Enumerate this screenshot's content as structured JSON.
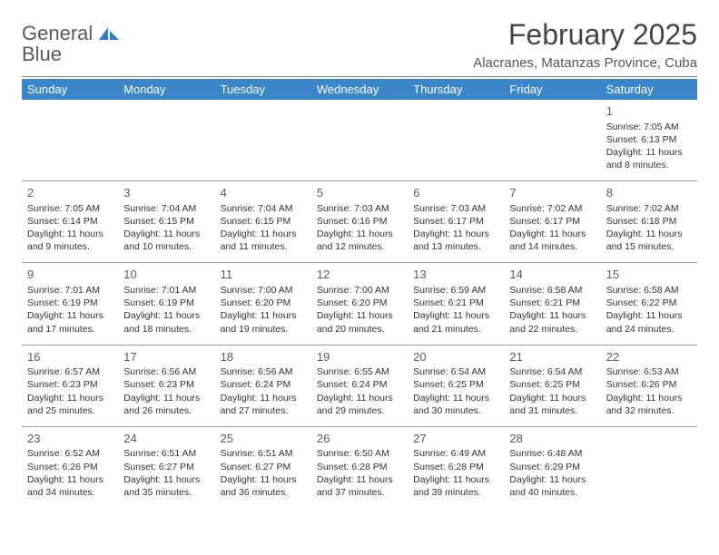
{
  "logo": {
    "text_gray": "General",
    "text_blue": "Blue",
    "icon_color": "#2f7fcf"
  },
  "title": "February 2025",
  "location": "Alacranes, Matanzas Province, Cuba",
  "colors": {
    "header_bg": "#3a86c8",
    "header_fg": "#ffffff",
    "rule": "#9a9a9a",
    "text": "#333333"
  },
  "day_headers": [
    "Sunday",
    "Monday",
    "Tuesday",
    "Wednesday",
    "Thursday",
    "Friday",
    "Saturday"
  ],
  "weeks": [
    [
      null,
      null,
      null,
      null,
      null,
      null,
      {
        "n": "1",
        "sunrise": "Sunrise: 7:05 AM",
        "sunset": "Sunset: 6:13 PM",
        "daylight": "Daylight: 11 hours and 8 minutes."
      }
    ],
    [
      {
        "n": "2",
        "sunrise": "Sunrise: 7:05 AM",
        "sunset": "Sunset: 6:14 PM",
        "daylight": "Daylight: 11 hours and 9 minutes."
      },
      {
        "n": "3",
        "sunrise": "Sunrise: 7:04 AM",
        "sunset": "Sunset: 6:15 PM",
        "daylight": "Daylight: 11 hours and 10 minutes."
      },
      {
        "n": "4",
        "sunrise": "Sunrise: 7:04 AM",
        "sunset": "Sunset: 6:15 PM",
        "daylight": "Daylight: 11 hours and 11 minutes."
      },
      {
        "n": "5",
        "sunrise": "Sunrise: 7:03 AM",
        "sunset": "Sunset: 6:16 PM",
        "daylight": "Daylight: 11 hours and 12 minutes."
      },
      {
        "n": "6",
        "sunrise": "Sunrise: 7:03 AM",
        "sunset": "Sunset: 6:17 PM",
        "daylight": "Daylight: 11 hours and 13 minutes."
      },
      {
        "n": "7",
        "sunrise": "Sunrise: 7:02 AM",
        "sunset": "Sunset: 6:17 PM",
        "daylight": "Daylight: 11 hours and 14 minutes."
      },
      {
        "n": "8",
        "sunrise": "Sunrise: 7:02 AM",
        "sunset": "Sunset: 6:18 PM",
        "daylight": "Daylight: 11 hours and 15 minutes."
      }
    ],
    [
      {
        "n": "9",
        "sunrise": "Sunrise: 7:01 AM",
        "sunset": "Sunset: 6:19 PM",
        "daylight": "Daylight: 11 hours and 17 minutes."
      },
      {
        "n": "10",
        "sunrise": "Sunrise: 7:01 AM",
        "sunset": "Sunset: 6:19 PM",
        "daylight": "Daylight: 11 hours and 18 minutes."
      },
      {
        "n": "11",
        "sunrise": "Sunrise: 7:00 AM",
        "sunset": "Sunset: 6:20 PM",
        "daylight": "Daylight: 11 hours and 19 minutes."
      },
      {
        "n": "12",
        "sunrise": "Sunrise: 7:00 AM",
        "sunset": "Sunset: 6:20 PM",
        "daylight": "Daylight: 11 hours and 20 minutes."
      },
      {
        "n": "13",
        "sunrise": "Sunrise: 6:59 AM",
        "sunset": "Sunset: 6:21 PM",
        "daylight": "Daylight: 11 hours and 21 minutes."
      },
      {
        "n": "14",
        "sunrise": "Sunrise: 6:58 AM",
        "sunset": "Sunset: 6:21 PM",
        "daylight": "Daylight: 11 hours and 22 minutes."
      },
      {
        "n": "15",
        "sunrise": "Sunrise: 6:58 AM",
        "sunset": "Sunset: 6:22 PM",
        "daylight": "Daylight: 11 hours and 24 minutes."
      }
    ],
    [
      {
        "n": "16",
        "sunrise": "Sunrise: 6:57 AM",
        "sunset": "Sunset: 6:23 PM",
        "daylight": "Daylight: 11 hours and 25 minutes."
      },
      {
        "n": "17",
        "sunrise": "Sunrise: 6:56 AM",
        "sunset": "Sunset: 6:23 PM",
        "daylight": "Daylight: 11 hours and 26 minutes."
      },
      {
        "n": "18",
        "sunrise": "Sunrise: 6:56 AM",
        "sunset": "Sunset: 6:24 PM",
        "daylight": "Daylight: 11 hours and 27 minutes."
      },
      {
        "n": "19",
        "sunrise": "Sunrise: 6:55 AM",
        "sunset": "Sunset: 6:24 PM",
        "daylight": "Daylight: 11 hours and 29 minutes."
      },
      {
        "n": "20",
        "sunrise": "Sunrise: 6:54 AM",
        "sunset": "Sunset: 6:25 PM",
        "daylight": "Daylight: 11 hours and 30 minutes."
      },
      {
        "n": "21",
        "sunrise": "Sunrise: 6:54 AM",
        "sunset": "Sunset: 6:25 PM",
        "daylight": "Daylight: 11 hours and 31 minutes."
      },
      {
        "n": "22",
        "sunrise": "Sunrise: 6:53 AM",
        "sunset": "Sunset: 6:26 PM",
        "daylight": "Daylight: 11 hours and 32 minutes."
      }
    ],
    [
      {
        "n": "23",
        "sunrise": "Sunrise: 6:52 AM",
        "sunset": "Sunset: 6:26 PM",
        "daylight": "Daylight: 11 hours and 34 minutes."
      },
      {
        "n": "24",
        "sunrise": "Sunrise: 6:51 AM",
        "sunset": "Sunset: 6:27 PM",
        "daylight": "Daylight: 11 hours and 35 minutes."
      },
      {
        "n": "25",
        "sunrise": "Sunrise: 6:51 AM",
        "sunset": "Sunset: 6:27 PM",
        "daylight": "Daylight: 11 hours and 36 minutes."
      },
      {
        "n": "26",
        "sunrise": "Sunrise: 6:50 AM",
        "sunset": "Sunset: 6:28 PM",
        "daylight": "Daylight: 11 hours and 37 minutes."
      },
      {
        "n": "27",
        "sunrise": "Sunrise: 6:49 AM",
        "sunset": "Sunset: 6:28 PM",
        "daylight": "Daylight: 11 hours and 39 minutes."
      },
      {
        "n": "28",
        "sunrise": "Sunrise: 6:48 AM",
        "sunset": "Sunset: 6:29 PM",
        "daylight": "Daylight: 11 hours and 40 minutes."
      },
      null
    ]
  ]
}
